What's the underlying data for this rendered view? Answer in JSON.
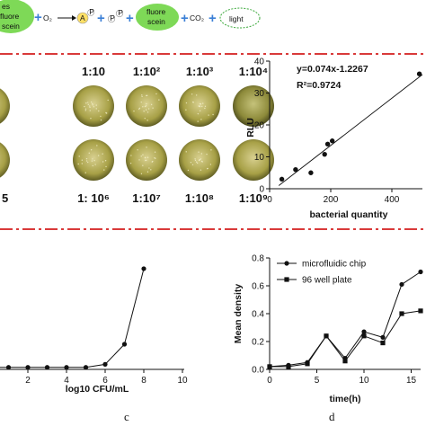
{
  "reaction": {
    "left_pill_lines": [
      "es",
      "fluore",
      "scein"
    ],
    "o2": "O₂",
    "a_label": "A",
    "p_label": "P",
    "product_lines": [
      "fluore",
      "scein"
    ],
    "co2": "CO₂",
    "light": "light",
    "colors": {
      "green": "#7ed957",
      "yellow": "#ffe066",
      "blue": "#3a7fd6",
      "red": "#d93a3a"
    }
  },
  "plates": {
    "row1_labels": [
      "1:10",
      "1:10²",
      "1:10³",
      "1:10⁴"
    ],
    "row2_labels": [
      "5",
      "1: 10⁶",
      "1:10⁷",
      "1:10⁸",
      "1:10⁹"
    ]
  },
  "panels": {
    "c": "c",
    "d": "d"
  },
  "chart_data": [
    {
      "id": "rlu-vs-bacteria",
      "type": "scatter",
      "xlabel": "bacterial quantity",
      "ylabel": "RLU",
      "xlim": [
        0,
        500
      ],
      "ylim": [
        0,
        40
      ],
      "xticks": [
        0,
        200,
        400
      ],
      "yticks": [
        0,
        10,
        20,
        30,
        40
      ],
      "equation": "y=0.074x-1.2267",
      "r2": "R²=0.9724",
      "points": [
        [
          40,
          3
        ],
        [
          85,
          6
        ],
        [
          135,
          5
        ],
        [
          180,
          10.8
        ],
        [
          190,
          14
        ],
        [
          205,
          15
        ],
        [
          490,
          36
        ]
      ],
      "fit": {
        "slope": 0.074,
        "intercept": -1.2267,
        "x_range": [
          30,
          500
        ]
      }
    },
    {
      "id": "log-cfu",
      "type": "line",
      "xlabel": "log10 CFU/mL",
      "ylabel": "",
      "xlim": [
        0,
        10
      ],
      "xticks": [
        2,
        4,
        6,
        8,
        10
      ],
      "x": [
        1,
        2,
        3,
        4,
        5,
        6,
        7,
        8
      ],
      "y": [
        0.02,
        0.02,
        0.02,
        0.02,
        0.02,
        0.05,
        0.25,
        1.0
      ],
      "ylim": [
        0,
        1.08
      ]
    },
    {
      "id": "mean-density",
      "type": "line",
      "xlabel": "time(h)",
      "ylabel": "Mean density",
      "xlim": [
        0,
        16
      ],
      "ylim": [
        0,
        0.8
      ],
      "xticks": [
        0,
        5,
        10,
        15
      ],
      "yticks": [
        0.0,
        0.2,
        0.4,
        0.6,
        0.8
      ],
      "legend_position": "top-left",
      "series": [
        {
          "name": "microfluidic chip",
          "marker": "circle",
          "x": [
            0,
            2,
            4,
            6,
            8,
            10,
            12,
            14,
            16
          ],
          "y": [
            0.02,
            0.03,
            0.05,
            0.24,
            0.08,
            0.27,
            0.23,
            0.61,
            0.7
          ]
        },
        {
          "name": "96 well plate",
          "marker": "square",
          "x": [
            0,
            2,
            4,
            6,
            8,
            10,
            12,
            14,
            16
          ],
          "y": [
            0.02,
            0.02,
            0.04,
            0.24,
            0.06,
            0.24,
            0.19,
            0.4,
            0.42
          ]
        }
      ]
    }
  ]
}
